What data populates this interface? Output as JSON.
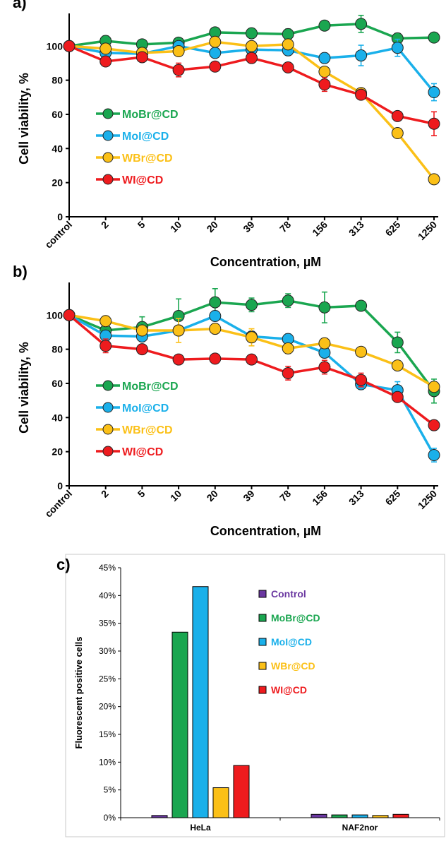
{
  "colors": {
    "MoBr@CD": "#1aa650",
    "MoI@CD": "#1ab0ea",
    "WBr@CD": "#fbc017",
    "WI@CD": "#ee1b1e",
    "Control": "#6a37a0"
  },
  "chart_data": [
    {
      "panel": "a)",
      "type": "line",
      "xlabel": "Concentration, µM",
      "ylabel": "Cell viability, %",
      "categories": [
        "control",
        "2",
        "5",
        "10",
        "20",
        "39",
        "78",
        "156",
        "313",
        "625",
        "1250"
      ],
      "ylim": [
        0,
        115
      ],
      "yticks": [
        "0",
        "20",
        "40",
        "60",
        "80",
        "100"
      ],
      "legend_position": "left",
      "series": [
        {
          "name": "MoBr@CD",
          "values": [
            100,
            103,
            101,
            102,
            108,
            107.5,
            107,
            112,
            113,
            104.5,
            105
          ],
          "errors": [
            0,
            3,
            2,
            2,
            2,
            2,
            3,
            2,
            5,
            3,
            2
          ]
        },
        {
          "name": "MoI@CD",
          "values": [
            100,
            96,
            95.5,
            100,
            96,
            98,
            97.5,
            93,
            94.5,
            99,
            73
          ],
          "errors": [
            0,
            3,
            2,
            3,
            2,
            2,
            2,
            3,
            6,
            5,
            5
          ]
        },
        {
          "name": "WBr@CD",
          "values": [
            100,
            98.5,
            96,
            97,
            102.5,
            100,
            101,
            85,
            72.5,
            49,
            22
          ],
          "errors": [
            0,
            2,
            2,
            2,
            2,
            2,
            2,
            2,
            2,
            2,
            2
          ]
        },
        {
          "name": "WI@CD",
          "values": [
            100,
            91,
            93.5,
            86,
            88,
            93,
            87.5,
            77.5,
            71.5,
            59,
            54.5
          ],
          "errors": [
            0,
            2,
            2,
            4,
            2,
            2,
            2,
            4,
            2,
            2,
            7
          ]
        }
      ]
    },
    {
      "panel": "b)",
      "type": "line",
      "xlabel": "Concentration, µM",
      "ylabel": "Cell viability, %",
      "categories": [
        "control",
        "2",
        "5",
        "10",
        "20",
        "39",
        "78",
        "156",
        "313",
        "625",
        "1250"
      ],
      "ylim": [
        0,
        115
      ],
      "yticks": [
        "0",
        "20",
        "40",
        "60",
        "80",
        "100"
      ],
      "legend_position": "left",
      "series": [
        {
          "name": "MoBr@CD",
          "values": [
            100,
            91,
            93,
            99.5,
            107.5,
            106,
            108.5,
            104.5,
            105.5,
            84,
            55.5
          ],
          "errors": [
            0,
            3,
            6,
            10,
            8,
            4,
            4,
            9,
            2,
            6,
            7
          ]
        },
        {
          "name": "MoI@CD",
          "values": [
            100,
            88,
            87.5,
            91,
            99.5,
            87.5,
            86,
            78,
            59.5,
            56,
            18
          ],
          "errors": [
            0,
            3,
            3,
            3,
            3,
            3,
            3,
            3,
            3,
            5,
            4
          ]
        },
        {
          "name": "WBr@CD",
          "values": [
            100,
            96.5,
            91,
            91,
            92,
            87,
            80.5,
            83.5,
            78.5,
            70.5,
            58
          ],
          "errors": [
            0,
            3,
            3,
            7,
            3,
            5,
            3,
            3,
            2,
            2,
            2
          ]
        },
        {
          "name": "WI@CD",
          "values": [
            100,
            82,
            80,
            74,
            74.5,
            74,
            66,
            69.5,
            62,
            52,
            35.5
          ],
          "errors": [
            0,
            4,
            2,
            2,
            2,
            2,
            4,
            4,
            4,
            2,
            2
          ]
        }
      ]
    },
    {
      "panel": "c)",
      "type": "bar",
      "xlabel": "",
      "ylabel": "Fluorescent positive cells",
      "categories": [
        "HeLa",
        "NAF2nor"
      ],
      "ylim": [
        0,
        45
      ],
      "yticks": [
        "0%",
        "5%",
        "10%",
        "15%",
        "20%",
        "25%",
        "30%",
        "35%",
        "40%",
        "45%"
      ],
      "legend_position": "right",
      "series": [
        {
          "name": "Control",
          "values": [
            0.4,
            0.6
          ]
        },
        {
          "name": "MoBr@CD",
          "values": [
            33.4,
            0.5
          ]
        },
        {
          "name": "MoI@CD",
          "values": [
            41.6,
            0.5
          ]
        },
        {
          "name": "WBr@CD",
          "values": [
            5.4,
            0.4
          ]
        },
        {
          "name": "WI@CD",
          "values": [
            9.4,
            0.6
          ]
        }
      ]
    }
  ]
}
